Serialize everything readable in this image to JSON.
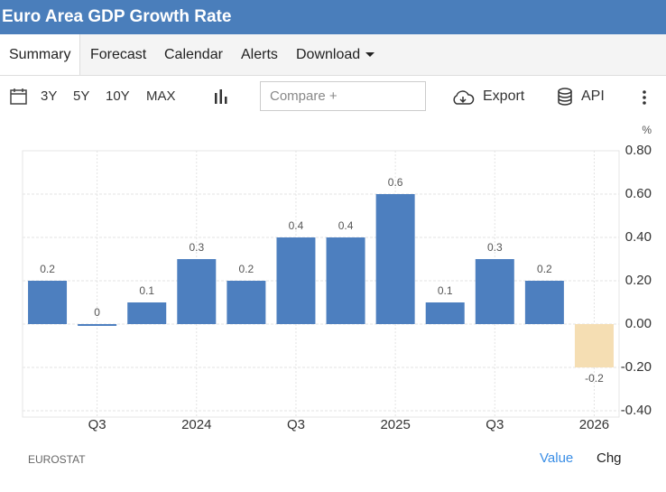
{
  "header": {
    "title": "Euro Area GDP Growth Rate"
  },
  "tabs": [
    "Summary",
    "Forecast",
    "Calendar",
    "Alerts",
    "Download"
  ],
  "toolbar": {
    "ranges": [
      "3Y",
      "5Y",
      "10Y",
      "MAX"
    ],
    "compare": "Compare +",
    "export": "Export",
    "api": "API"
  },
  "chart_data": {
    "type": "bar",
    "categories": [
      null,
      "Q3",
      null,
      "2024",
      null,
      "Q3",
      null,
      "2025",
      null,
      "Q3",
      null,
      "2026"
    ],
    "values": [
      0.2,
      0,
      0.1,
      0.3,
      0.2,
      0.4,
      0.4,
      0.6,
      0.1,
      0.3,
      0.2,
      -0.2
    ],
    "colors": [
      "#4d7fbf",
      "#4d7fbf",
      "#4d7fbf",
      "#4d7fbf",
      "#4d7fbf",
      "#4d7fbf",
      "#4d7fbf",
      "#4d7fbf",
      "#4d7fbf",
      "#4d7fbf",
      "#4d7fbf",
      "#f5deb3"
    ],
    "y_unit": "%",
    "ylim": [
      -0.4,
      0.8
    ],
    "yticks": [
      {
        "value": 0.8,
        "label": "0.80"
      },
      {
        "value": 0.6,
        "label": "0.60"
      },
      {
        "value": 0.4,
        "label": "0.40"
      },
      {
        "value": 0.2,
        "label": "0.20"
      },
      {
        "value": 0,
        "label": "0.00"
      },
      {
        "value": -0.2,
        "label": "-0.20"
      },
      {
        "value": -0.4,
        "label": "-0.40"
      }
    ],
    "grid": true,
    "y_axis_side": "right"
  },
  "footer": {
    "source": "EUROSTAT",
    "toggles": [
      "Value",
      "Chg"
    ]
  }
}
